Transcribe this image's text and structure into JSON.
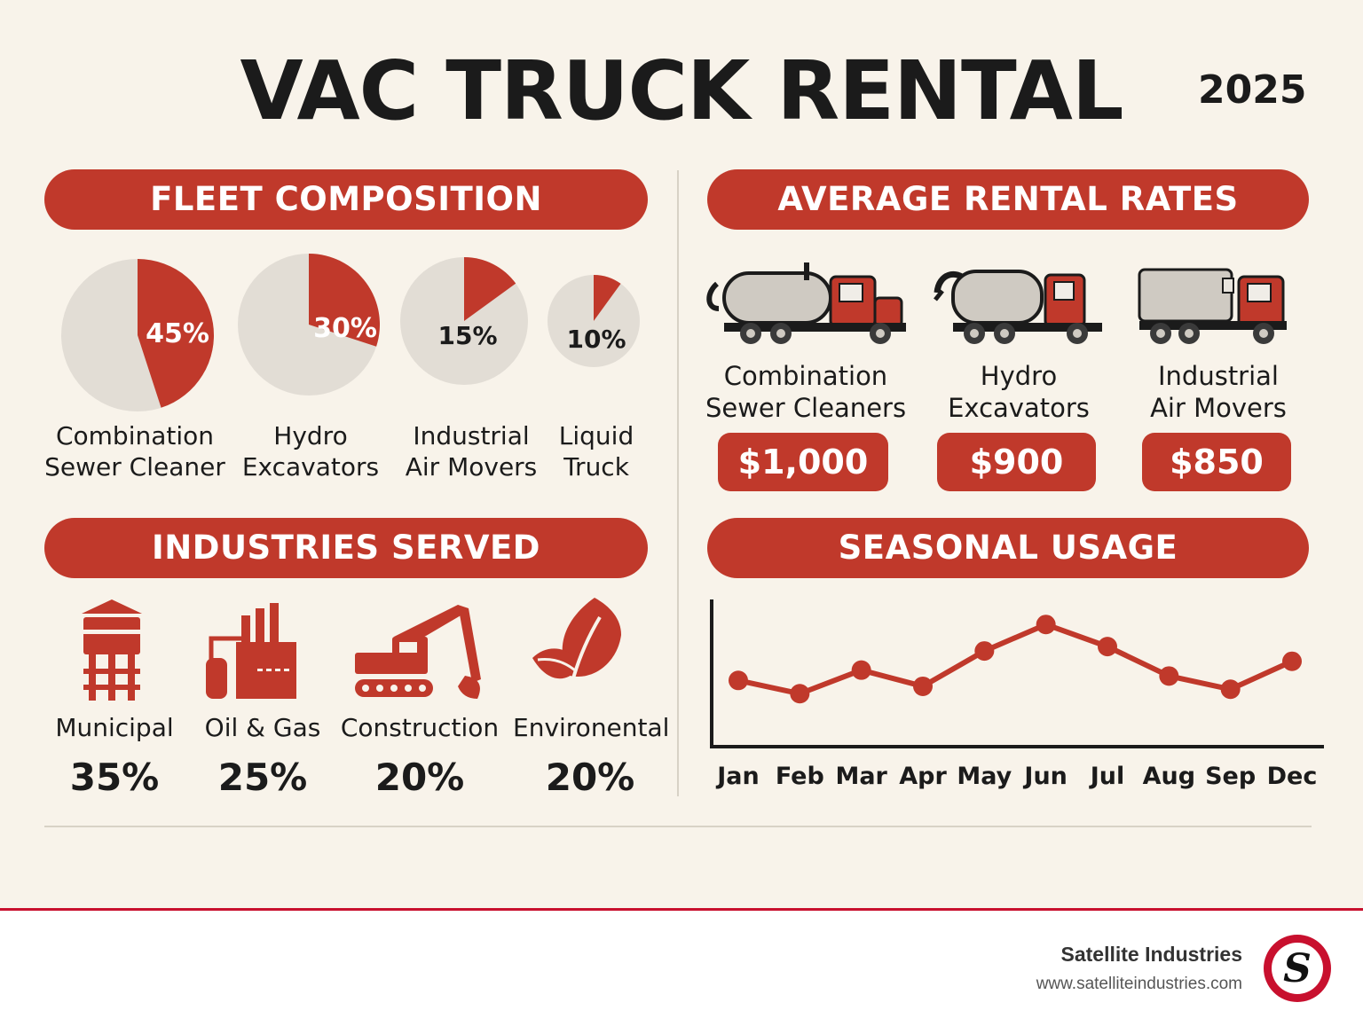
{
  "header": {
    "title": "VAC TRUCK RENTAL",
    "year": "2025"
  },
  "fleet": {
    "heading": "FLEET COMPOSITION",
    "items": [
      {
        "label_line1": "Combination",
        "label_line2": "Sewer Cleaner",
        "percent": 45,
        "percent_label": "45%"
      },
      {
        "label_line1": "Hydro",
        "label_line2": "Excavators",
        "percent": 30,
        "percent_label": "30%"
      },
      {
        "label_line1": "Industrial",
        "label_line2": "Air Movers",
        "percent": 15,
        "percent_label": "15%"
      },
      {
        "label_line1": "Liquid",
        "label_line2": "Truck",
        "percent": 10,
        "percent_label": "10%"
      }
    ]
  },
  "rates": {
    "heading": "AVERAGE RENTAL RATES",
    "items": [
      {
        "label_line1": "Combination",
        "label_line2": "Sewer Cleaners",
        "price": "$1,000"
      },
      {
        "label_line1": "Hydro",
        "label_line2": "Excavators",
        "price": "$900"
      },
      {
        "label_line1": "Industrial",
        "label_line2": "Air Movers",
        "price": "$850"
      }
    ]
  },
  "industries": {
    "heading": "INDUSTRIES SERVED",
    "items": [
      {
        "name": "Municipal",
        "percent": "35%",
        "icon": "water-tower-icon"
      },
      {
        "name": "Oil & Gas",
        "percent": "25%",
        "icon": "refinery-icon"
      },
      {
        "name": "Construction",
        "percent": "20%",
        "icon": "excavator-icon"
      },
      {
        "name": "Environental",
        "percent": "20%",
        "icon": "leaf-icon"
      }
    ]
  },
  "chart_data": {
    "type": "line",
    "title": "SEASONAL USAGE",
    "categories": [
      "Jan",
      "Feb",
      "Mar",
      "Apr",
      "May",
      "Jun",
      "Jul",
      "Aug",
      "Sep",
      "Dec"
    ],
    "values": [
      4.5,
      3.6,
      5.2,
      4.1,
      6.5,
      8.3,
      6.8,
      4.8,
      3.9,
      5.8
    ],
    "ylim": [
      0,
      10
    ],
    "grid": false,
    "color": "#c0392b"
  },
  "footer": {
    "company": "Satellite Industries",
    "url": "www.satelliteindustries.com",
    "logo_letter": "S"
  },
  "colors": {
    "accent": "#c0392b",
    "neutral": "#e2ddd5",
    "background": "#f8f3ea"
  }
}
